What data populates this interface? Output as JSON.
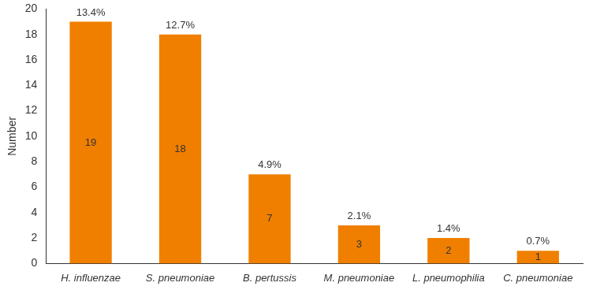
{
  "chart_data": {
    "type": "bar",
    "y_label": "Number",
    "categories": [
      "H. influenzae",
      "S. pneumoniae",
      "B. pertussis",
      "M. pneumoniae",
      "L. pneumophilia",
      "C. pneumoniae"
    ],
    "values": [
      19,
      18,
      7,
      3,
      2,
      1
    ],
    "percent_labels": [
      "13.4%",
      "12.7%",
      "4.9%",
      "2.1%",
      "1.4%",
      "0.7%"
    ],
    "color": "#f07f00",
    "ylim": [
      0,
      20
    ],
    "yticks": [
      0,
      2,
      4,
      6,
      8,
      10,
      12,
      14,
      16,
      18,
      20
    ],
    "grid": false,
    "data_labels": true
  }
}
